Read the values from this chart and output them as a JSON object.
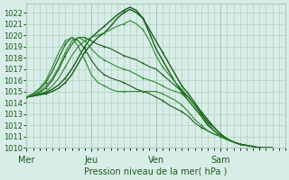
{
  "xlabel": "Pression niveau de la mer( hPa )",
  "ylim": [
    1010,
    1022.8
  ],
  "yticks": [
    1010,
    1011,
    1012,
    1013,
    1014,
    1015,
    1016,
    1017,
    1018,
    1019,
    1020,
    1021,
    1022
  ],
  "day_labels": [
    "Mer",
    "Jeu",
    "Ven",
    "Sam"
  ],
  "day_positions": [
    0,
    60,
    120,
    180
  ],
  "bg_color": "#d8ede8",
  "grid_color": "#a8c8b8",
  "line_color_dark": "#1a5c1a",
  "line_color_mid": "#2e8b2e",
  "total_hours": 240,
  "series": [
    {
      "x": [
        0,
        6,
        12,
        18,
        24,
        30,
        36,
        42,
        48,
        54,
        60,
        66,
        72,
        78,
        84,
        90,
        96,
        102,
        108,
        114,
        120,
        126,
        132,
        138,
        144,
        150,
        156,
        162,
        168,
        174,
        180,
        186,
        192,
        198,
        204,
        210,
        216,
        222,
        228
      ],
      "y": [
        1014.5,
        1014.6,
        1014.7,
        1014.8,
        1015.0,
        1015.3,
        1015.8,
        1016.5,
        1017.5,
        1018.5,
        1019.2,
        1019.8,
        1020.2,
        1020.8,
        1021.5,
        1022.0,
        1022.3,
        1022.0,
        1021.5,
        1020.5,
        1019.5,
        1018.5,
        1017.5,
        1016.5,
        1015.5,
        1014.8,
        1014.0,
        1013.2,
        1012.5,
        1011.8,
        1011.2,
        1010.8,
        1010.5,
        1010.3,
        1010.2,
        1010.1,
        1010.0,
        1010.0,
        1010.0
      ]
    },
    {
      "x": [
        0,
        6,
        12,
        18,
        24,
        30,
        36,
        42,
        48,
        54,
        60,
        66,
        72,
        78,
        84,
        90,
        96,
        102,
        108,
        114,
        120,
        126,
        132,
        138,
        144,
        150,
        156,
        162,
        168,
        174,
        180,
        186,
        192,
        198,
        204,
        210,
        216,
        222,
        228
      ],
      "y": [
        1014.5,
        1014.6,
        1014.7,
        1014.9,
        1015.2,
        1015.6,
        1016.2,
        1017.0,
        1018.0,
        1019.0,
        1019.8,
        1020.3,
        1020.8,
        1021.3,
        1021.8,
        1022.2,
        1022.5,
        1022.2,
        1021.5,
        1020.2,
        1018.8,
        1017.8,
        1016.8,
        1015.8,
        1015.0,
        1014.2,
        1013.5,
        1012.8,
        1012.0,
        1011.5,
        1011.0,
        1010.7,
        1010.5,
        1010.3,
        1010.2,
        1010.1,
        1010.0,
        1010.0,
        1010.0
      ]
    },
    {
      "x": [
        0,
        6,
        12,
        18,
        24,
        30,
        36,
        42,
        48,
        54,
        60,
        66,
        72,
        78,
        84,
        90,
        96,
        102,
        108,
        114,
        120,
        126,
        132,
        138,
        144,
        150,
        156,
        162,
        168,
        174,
        180,
        186,
        192,
        198,
        204
      ],
      "y": [
        1014.5,
        1014.6,
        1014.8,
        1015.0,
        1015.5,
        1016.2,
        1017.2,
        1018.2,
        1019.0,
        1019.5,
        1019.8,
        1020.0,
        1020.2,
        1020.5,
        1020.8,
        1021.0,
        1021.3,
        1021.0,
        1020.5,
        1019.5,
        1018.2,
        1017.2,
        1016.5,
        1015.8,
        1015.2,
        1014.5,
        1013.8,
        1013.0,
        1012.3,
        1011.5,
        1011.0,
        1010.7,
        1010.5,
        1010.3,
        1010.2
      ]
    },
    {
      "x": [
        0,
        6,
        12,
        18,
        24,
        30,
        36,
        42,
        48,
        54,
        60,
        66,
        72,
        78,
        84,
        90,
        96,
        102,
        108,
        114,
        120,
        126,
        132,
        138,
        144,
        150,
        156,
        162,
        168,
        174,
        180,
        186,
        192,
        198,
        204
      ],
      "y": [
        1014.5,
        1014.6,
        1014.9,
        1015.3,
        1016.0,
        1017.0,
        1018.2,
        1019.2,
        1019.8,
        1019.8,
        1019.5,
        1019.2,
        1019.0,
        1018.8,
        1018.5,
        1018.2,
        1018.0,
        1017.8,
        1017.5,
        1017.2,
        1017.0,
        1016.5,
        1016.0,
        1015.5,
        1015.0,
        1014.5,
        1013.8,
        1013.0,
        1012.3,
        1011.8,
        1011.2,
        1010.8,
        1010.5,
        1010.3,
        1010.2
      ]
    },
    {
      "x": [
        0,
        6,
        12,
        18,
        24,
        30,
        36,
        42,
        48,
        54,
        60,
        66,
        72,
        78,
        84,
        90,
        96,
        102,
        108,
        114,
        120,
        126,
        132,
        138,
        144,
        150,
        156,
        162,
        168,
        174,
        180,
        186,
        192
      ],
      "y": [
        1014.5,
        1014.7,
        1015.0,
        1015.5,
        1016.2,
        1017.2,
        1018.5,
        1019.5,
        1019.8,
        1019.5,
        1018.8,
        1018.2,
        1017.8,
        1017.5,
        1017.2,
        1017.0,
        1016.8,
        1016.5,
        1016.2,
        1016.0,
        1015.8,
        1015.5,
        1015.2,
        1015.0,
        1014.8,
        1014.2,
        1013.5,
        1012.8,
        1012.2,
        1011.5,
        1011.0,
        1010.8,
        1010.5
      ]
    },
    {
      "x": [
        0,
        6,
        12,
        18,
        24,
        30,
        36,
        42,
        48,
        54,
        60,
        66,
        72,
        78,
        84,
        90,
        96,
        102,
        108,
        114,
        120,
        126,
        132,
        138,
        144,
        150,
        156,
        162,
        168,
        174,
        180,
        186,
        192
      ],
      "y": [
        1014.5,
        1014.8,
        1015.2,
        1015.8,
        1016.8,
        1018.0,
        1019.2,
        1019.8,
        1019.5,
        1018.8,
        1017.8,
        1017.0,
        1016.5,
        1016.2,
        1016.0,
        1015.8,
        1015.5,
        1015.2,
        1015.0,
        1014.8,
        1014.5,
        1014.2,
        1013.8,
        1013.5,
        1013.2,
        1012.8,
        1012.2,
        1011.8,
        1011.5,
        1011.2,
        1011.0,
        1010.8,
        1010.5
      ]
    },
    {
      "x": [
        0,
        6,
        12,
        18,
        24,
        30,
        36,
        42,
        48,
        54,
        60,
        66,
        72,
        78,
        84,
        90,
        96,
        102,
        108,
        114,
        120,
        126,
        132,
        138,
        144,
        150,
        156,
        162,
        168,
        174,
        180,
        186,
        192
      ],
      "y": [
        1014.5,
        1014.8,
        1015.3,
        1016.0,
        1017.2,
        1018.5,
        1019.5,
        1019.8,
        1019.0,
        1017.8,
        1016.5,
        1015.8,
        1015.5,
        1015.2,
        1015.0,
        1015.0,
        1015.0,
        1015.0,
        1015.0,
        1015.0,
        1015.0,
        1014.8,
        1014.5,
        1014.2,
        1013.8,
        1013.2,
        1012.5,
        1012.0,
        1011.5,
        1011.2,
        1011.0,
        1010.8,
        1010.5
      ]
    }
  ]
}
